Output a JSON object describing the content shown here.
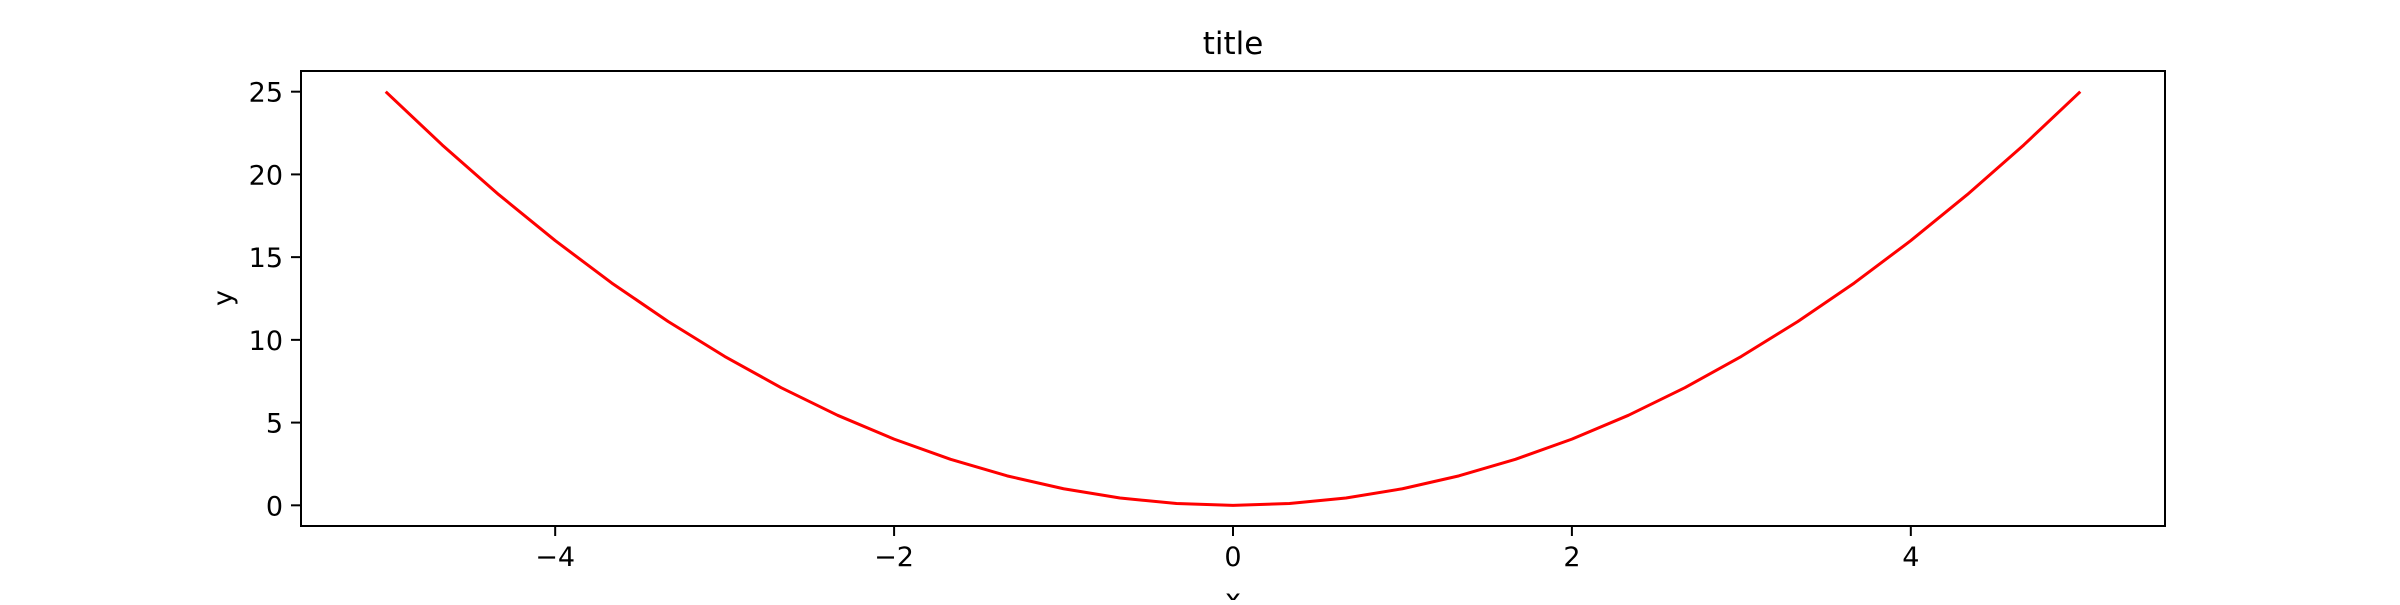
{
  "chart_data": {
    "type": "line",
    "title": "title",
    "xlabel": "x",
    "ylabel": "y",
    "xlim": [
      -5.5,
      5.5
    ],
    "ylim": [
      -1.25,
      26.25
    ],
    "xticks": [
      -4,
      -2,
      0,
      2,
      4
    ],
    "xtick_labels": [
      "−4",
      "−2",
      "0",
      "2",
      "4"
    ],
    "yticks": [
      0,
      5,
      10,
      15,
      20,
      25
    ],
    "ytick_labels": [
      "0",
      "5",
      "10",
      "15",
      "20",
      "25"
    ],
    "grid": false,
    "series": [
      {
        "color": "#ff0000",
        "x": [
          -5.0,
          -4.6667,
          -4.3333,
          -4.0,
          -3.6667,
          -3.3333,
          -3.0,
          -2.6667,
          -2.3333,
          -2.0,
          -1.6667,
          -1.3333,
          -1.0,
          -0.6667,
          -0.3333,
          0.0,
          0.3333,
          0.6667,
          1.0,
          1.3333,
          1.6667,
          2.0,
          2.3333,
          2.6667,
          3.0,
          3.3333,
          3.6667,
          4.0,
          4.3333,
          4.6667,
          5.0
        ],
        "y": [
          25.0,
          21.78,
          18.78,
          16.0,
          13.44,
          11.11,
          9.0,
          7.11,
          5.44,
          4.0,
          2.78,
          1.78,
          1.0,
          0.44,
          0.11,
          0.0,
          0.11,
          0.44,
          1.0,
          1.78,
          2.78,
          4.0,
          5.44,
          7.11,
          9.0,
          11.11,
          13.44,
          16.0,
          18.78,
          21.78,
          25.0
        ]
      }
    ]
  }
}
